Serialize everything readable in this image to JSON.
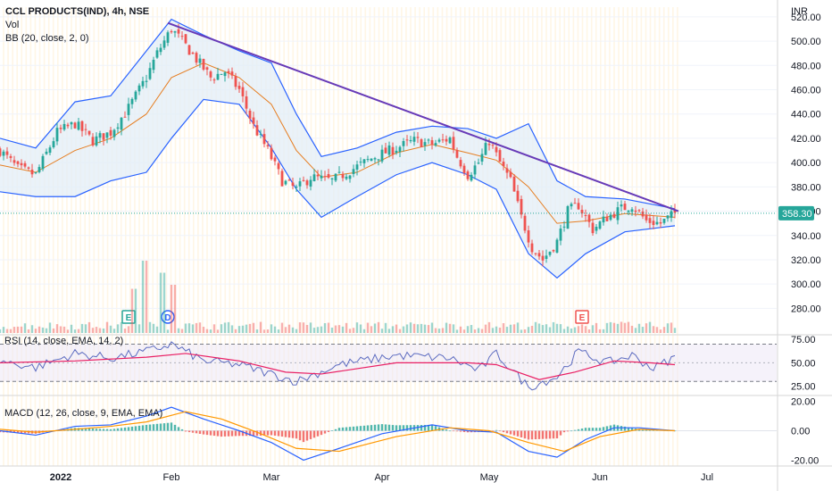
{
  "header": {
    "symbol_line": "CCL PRODUCTS(IND), 4h, NSE",
    "vol_label": "Vol",
    "bb_label": "BB (20, close, 2, 0)",
    "currency": "INR",
    "last_price": "358.30"
  },
  "colors": {
    "up": "#26a69a",
    "down": "#ef5350",
    "bb_band": "#2962ff",
    "bb_basis": "#e67e22",
    "bb_fill": "#e3eef7",
    "trendline": "#673ab7",
    "rsi": "#5c6bc0",
    "rsi_ma": "#e91e63",
    "macd": "#2962ff",
    "signal": "#ff9800",
    "price_tag": "#26a69a",
    "session_stripe": "#fff6e5"
  },
  "events": [
    {
      "label": "E",
      "x": "2022-01-20",
      "color": "#26a69a",
      "name": "earnings-marker-jan"
    },
    {
      "label": "D",
      "x": "2022-01-31",
      "color": "#2962ff",
      "name": "dividend-marker-jan"
    },
    {
      "label": "E",
      "x": "2022-05-27",
      "color": "#ef5350",
      "name": "earnings-marker-may"
    }
  ],
  "chart_data": [
    {
      "pane": "price",
      "type": "candlestick",
      "title": "CCL PRODUCTS(IND), 4h, NSE",
      "ylabel": "INR",
      "ylim": [
        270,
        528
      ],
      "yticks": [
        280,
        300,
        320,
        340,
        360,
        380,
        400,
        420,
        440,
        460,
        480,
        500,
        520
      ],
      "ytick_labels": [
        "280.00",
        "300.00",
        "320.00",
        "340.00",
        "360.00",
        "380.00",
        "400.00",
        "420.00",
        "440.00",
        "460.00",
        "480.00",
        "500.00",
        "520.00"
      ],
      "xlim": [
        "2021-12-15",
        "2022-06-23"
      ],
      "xticks": [
        "2022-01-01",
        "2022-02-01",
        "2022-03-01",
        "2022-04-01",
        "2022-05-01",
        "2022-06-01",
        "2022-07-01"
      ],
      "xtick_labels": [
        "2022",
        "Feb",
        "Mar",
        "Apr",
        "May",
        "Jun",
        "Jul"
      ],
      "close": [
        {
          "x": "2021-12-15",
          "y": 410
        },
        {
          "x": "2021-12-20",
          "y": 395
        },
        {
          "x": "2021-12-25",
          "y": 390
        },
        {
          "x": "2021-12-31",
          "y": 425
        },
        {
          "x": "2022-01-05",
          "y": 432
        },
        {
          "x": "2022-01-10",
          "y": 418
        },
        {
          "x": "2022-01-15",
          "y": 425
        },
        {
          "x": "2022-01-20",
          "y": 445
        },
        {
          "x": "2022-01-25",
          "y": 470
        },
        {
          "x": "2022-01-28",
          "y": 490
        },
        {
          "x": "2022-02-01",
          "y": 510
        },
        {
          "x": "2022-02-04",
          "y": 500
        },
        {
          "x": "2022-02-08",
          "y": 485
        },
        {
          "x": "2022-02-12",
          "y": 470
        },
        {
          "x": "2022-02-16",
          "y": 475
        },
        {
          "x": "2022-02-20",
          "y": 460
        },
        {
          "x": "2022-02-24",
          "y": 430
        },
        {
          "x": "2022-02-28",
          "y": 410
        },
        {
          "x": "2022-03-04",
          "y": 385
        },
        {
          "x": "2022-03-08",
          "y": 378
        },
        {
          "x": "2022-03-12",
          "y": 388
        },
        {
          "x": "2022-03-18",
          "y": 385
        },
        {
          "x": "2022-03-24",
          "y": 395
        },
        {
          "x": "2022-03-30",
          "y": 405
        },
        {
          "x": "2022-04-05",
          "y": 412
        },
        {
          "x": "2022-04-10",
          "y": 418
        },
        {
          "x": "2022-04-15",
          "y": 415
        },
        {
          "x": "2022-04-20",
          "y": 420
        },
        {
          "x": "2022-04-22",
          "y": 405
        },
        {
          "x": "2022-04-25",
          "y": 390
        },
        {
          "x": "2022-04-28",
          "y": 400
        },
        {
          "x": "2022-05-01",
          "y": 418
        },
        {
          "x": "2022-05-04",
          "y": 400
        },
        {
          "x": "2022-05-07",
          "y": 385
        },
        {
          "x": "2022-05-10",
          "y": 355
        },
        {
          "x": "2022-05-13",
          "y": 330
        },
        {
          "x": "2022-05-16",
          "y": 320
        },
        {
          "x": "2022-05-20",
          "y": 335
        },
        {
          "x": "2022-05-23",
          "y": 360
        },
        {
          "x": "2022-05-26",
          "y": 365
        },
        {
          "x": "2022-05-30",
          "y": 345
        },
        {
          "x": "2022-06-03",
          "y": 355
        },
        {
          "x": "2022-06-07",
          "y": 362
        },
        {
          "x": "2022-06-10",
          "y": 365
        },
        {
          "x": "2022-06-14",
          "y": 352
        },
        {
          "x": "2022-06-18",
          "y": 350
        },
        {
          "x": "2022-06-22",
          "y": 358.3
        }
      ],
      "bb_upper": [
        {
          "x": "2021-12-15",
          "y": 420
        },
        {
          "x": "2021-12-25",
          "y": 412
        },
        {
          "x": "2022-01-05",
          "y": 450
        },
        {
          "x": "2022-01-15",
          "y": 455
        },
        {
          "x": "2022-01-25",
          "y": 492
        },
        {
          "x": "2022-02-01",
          "y": 518
        },
        {
          "x": "2022-02-10",
          "y": 505
        },
        {
          "x": "2022-02-20",
          "y": 492
        },
        {
          "x": "2022-03-01",
          "y": 482
        },
        {
          "x": "2022-03-08",
          "y": 440
        },
        {
          "x": "2022-03-15",
          "y": 405
        },
        {
          "x": "2022-03-25",
          "y": 412
        },
        {
          "x": "2022-04-05",
          "y": 425
        },
        {
          "x": "2022-04-15",
          "y": 430
        },
        {
          "x": "2022-04-25",
          "y": 428
        },
        {
          "x": "2022-05-03",
          "y": 420
        },
        {
          "x": "2022-05-12",
          "y": 432
        },
        {
          "x": "2022-05-20",
          "y": 385
        },
        {
          "x": "2022-05-28",
          "y": 372
        },
        {
          "x": "2022-06-08",
          "y": 370
        },
        {
          "x": "2022-06-22",
          "y": 362
        }
      ],
      "bb_basis": [
        {
          "x": "2021-12-15",
          "y": 398
        },
        {
          "x": "2021-12-25",
          "y": 392
        },
        {
          "x": "2022-01-05",
          "y": 410
        },
        {
          "x": "2022-01-15",
          "y": 420
        },
        {
          "x": "2022-01-25",
          "y": 440
        },
        {
          "x": "2022-02-01",
          "y": 470
        },
        {
          "x": "2022-02-10",
          "y": 482
        },
        {
          "x": "2022-02-20",
          "y": 470
        },
        {
          "x": "2022-03-01",
          "y": 448
        },
        {
          "x": "2022-03-08",
          "y": 410
        },
        {
          "x": "2022-03-15",
          "y": 388
        },
        {
          "x": "2022-03-25",
          "y": 392
        },
        {
          "x": "2022-04-05",
          "y": 408
        },
        {
          "x": "2022-04-15",
          "y": 415
        },
        {
          "x": "2022-04-25",
          "y": 408
        },
        {
          "x": "2022-05-03",
          "y": 402
        },
        {
          "x": "2022-05-12",
          "y": 380
        },
        {
          "x": "2022-05-20",
          "y": 350
        },
        {
          "x": "2022-05-28",
          "y": 352
        },
        {
          "x": "2022-06-08",
          "y": 358
        },
        {
          "x": "2022-06-22",
          "y": 355
        }
      ],
      "bb_lower": [
        {
          "x": "2021-12-15",
          "y": 376
        },
        {
          "x": "2021-12-25",
          "y": 372
        },
        {
          "x": "2022-01-05",
          "y": 372
        },
        {
          "x": "2022-01-15",
          "y": 385
        },
        {
          "x": "2022-01-25",
          "y": 392
        },
        {
          "x": "2022-02-01",
          "y": 420
        },
        {
          "x": "2022-02-10",
          "y": 452
        },
        {
          "x": "2022-02-20",
          "y": 448
        },
        {
          "x": "2022-03-01",
          "y": 412
        },
        {
          "x": "2022-03-08",
          "y": 378
        },
        {
          "x": "2022-03-15",
          "y": 355
        },
        {
          "x": "2022-03-25",
          "y": 372
        },
        {
          "x": "2022-04-05",
          "y": 390
        },
        {
          "x": "2022-04-15",
          "y": 400
        },
        {
          "x": "2022-04-25",
          "y": 390
        },
        {
          "x": "2022-05-03",
          "y": 378
        },
        {
          "x": "2022-05-12",
          "y": 325
        },
        {
          "x": "2022-05-20",
          "y": 305
        },
        {
          "x": "2022-05-28",
          "y": 325
        },
        {
          "x": "2022-06-08",
          "y": 343
        },
        {
          "x": "2022-06-22",
          "y": 348
        }
      ],
      "trendline": [
        {
          "x": "2022-01-31",
          "y": 515
        },
        {
          "x": "2022-06-23",
          "y": 360
        }
      ],
      "last_price": 358.3
    },
    {
      "pane": "volume",
      "type": "bar",
      "label": "Vol",
      "note": "relative volume bars at bottom of price pane; spikes near late Jan / early Feb",
      "spikes": [
        {
          "x": "2022-01-22",
          "v": 0.55
        },
        {
          "x": "2022-01-25",
          "v": 0.9
        },
        {
          "x": "2022-01-30",
          "v": 0.75
        },
        {
          "x": "2022-02-02",
          "v": 0.6
        }
      ]
    },
    {
      "pane": "rsi",
      "type": "line",
      "title": "RSI (14, close, EMA, 14, 2)",
      "ylim": [
        15,
        80
      ],
      "yticks": [
        25,
        50,
        75
      ],
      "ytick_labels": [
        "25.00",
        "50.00",
        "75.00"
      ],
      "bands": [
        70,
        30
      ],
      "series": [
        {
          "name": "",
          "points": [
            {
              "x": "2021-12-15",
              "y": 52
            },
            {
              "x": "2021-12-25",
              "y": 45
            },
            {
              "x": "2022-01-05",
              "y": 60
            },
            {
              "x": "2022-01-15",
              "y": 55
            },
            {
              "x": "2022-01-25",
              "y": 62
            },
            {
              "x": "2022-02-01",
              "y": 70
            },
            {
              "x": "2022-02-10",
              "y": 52
            },
            {
              "x": "2022-02-20",
              "y": 48
            },
            {
              "x": "2022-03-01",
              "y": 38
            },
            {
              "x": "2022-03-08",
              "y": 30
            },
            {
              "x": "2022-03-20",
              "y": 48
            },
            {
              "x": "2022-04-05",
              "y": 58
            },
            {
              "x": "2022-04-20",
              "y": 55
            },
            {
              "x": "2022-04-28",
              "y": 42
            },
            {
              "x": "2022-05-03",
              "y": 60
            },
            {
              "x": "2022-05-12",
              "y": 24
            },
            {
              "x": "2022-05-20",
              "y": 35
            },
            {
              "x": "2022-05-26",
              "y": 62
            },
            {
              "x": "2022-06-03",
              "y": 50
            },
            {
              "x": "2022-06-10",
              "y": 58
            },
            {
              "x": "2022-06-16",
              "y": 44
            },
            {
              "x": "2022-06-22",
              "y": 56
            }
          ]
        },
        {
          "name": "",
          "points": [
            {
              "x": "2021-12-15",
              "y": 50
            },
            {
              "x": "2022-01-05",
              "y": 52
            },
            {
              "x": "2022-01-25",
              "y": 56
            },
            {
              "x": "2022-02-05",
              "y": 60
            },
            {
              "x": "2022-02-20",
              "y": 52
            },
            {
              "x": "2022-03-05",
              "y": 40
            },
            {
              "x": "2022-03-15",
              "y": 38
            },
            {
              "x": "2022-04-05",
              "y": 50
            },
            {
              "x": "2022-04-25",
              "y": 50
            },
            {
              "x": "2022-05-03",
              "y": 48
            },
            {
              "x": "2022-05-15",
              "y": 32
            },
            {
              "x": "2022-05-25",
              "y": 40
            },
            {
              "x": "2022-06-05",
              "y": 52
            },
            {
              "x": "2022-06-15",
              "y": 50
            },
            {
              "x": "2022-06-22",
              "y": 48
            }
          ]
        }
      ]
    },
    {
      "pane": "macd",
      "type": "line",
      "title": "MACD (12, 26, close, 9, EMA, EMA)",
      "ylim": [
        -24,
        24
      ],
      "yticks": [
        -20,
        0,
        20
      ],
      "ytick_labels": [
        "-20.00",
        "0.00",
        "20.00"
      ],
      "macd": [
        {
          "x": "2021-12-15",
          "y": 0
        },
        {
          "x": "2021-12-25",
          "y": -3
        },
        {
          "x": "2022-01-05",
          "y": 3
        },
        {
          "x": "2022-01-15",
          "y": 4
        },
        {
          "x": "2022-01-25",
          "y": 10
        },
        {
          "x": "2022-02-01",
          "y": 16
        },
        {
          "x": "2022-02-10",
          "y": 8
        },
        {
          "x": "2022-02-20",
          "y": 0
        },
        {
          "x": "2022-03-01",
          "y": -8
        },
        {
          "x": "2022-03-10",
          "y": -20
        },
        {
          "x": "2022-03-20",
          "y": -12
        },
        {
          "x": "2022-04-01",
          "y": -2
        },
        {
          "x": "2022-04-15",
          "y": 4
        },
        {
          "x": "2022-04-25",
          "y": 0
        },
        {
          "x": "2022-05-03",
          "y": -1
        },
        {
          "x": "2022-05-12",
          "y": -14
        },
        {
          "x": "2022-05-20",
          "y": -18
        },
        {
          "x": "2022-05-28",
          "y": -6
        },
        {
          "x": "2022-06-05",
          "y": 2
        },
        {
          "x": "2022-06-12",
          "y": 2
        },
        {
          "x": "2022-06-22",
          "y": 0
        }
      ],
      "signal": [
        {
          "x": "2021-12-15",
          "y": 1
        },
        {
          "x": "2021-12-25",
          "y": -1
        },
        {
          "x": "2022-01-05",
          "y": 1
        },
        {
          "x": "2022-01-15",
          "y": 3
        },
        {
          "x": "2022-01-25",
          "y": 6
        },
        {
          "x": "2022-02-05",
          "y": 13
        },
        {
          "x": "2022-02-15",
          "y": 8
        },
        {
          "x": "2022-02-25",
          "y": -1
        },
        {
          "x": "2022-03-08",
          "y": -12
        },
        {
          "x": "2022-03-20",
          "y": -14
        },
        {
          "x": "2022-04-05",
          "y": -4
        },
        {
          "x": "2022-04-20",
          "y": 2
        },
        {
          "x": "2022-05-01",
          "y": 0
        },
        {
          "x": "2022-05-12",
          "y": -8
        },
        {
          "x": "2022-05-22",
          "y": -14
        },
        {
          "x": "2022-06-01",
          "y": -4
        },
        {
          "x": "2022-06-12",
          "y": 1
        },
        {
          "x": "2022-06-22",
          "y": 0
        }
      ]
    }
  ]
}
